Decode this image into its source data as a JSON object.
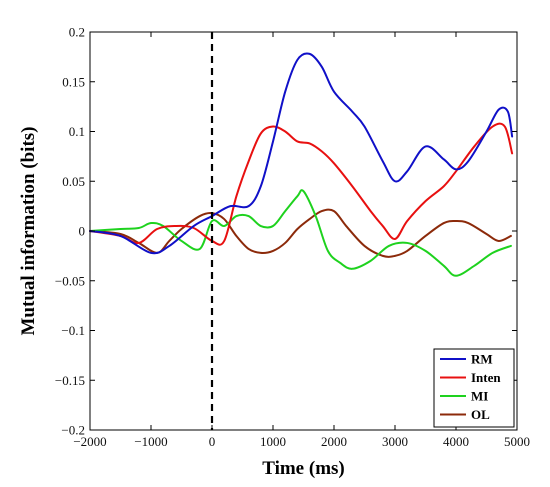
{
  "chart_data": {
    "type": "line",
    "xlabel": "Time (ms)",
    "ylabel": "Mutual information (bits)",
    "xlim": [
      -2000,
      5000
    ],
    "ylim": [
      -0.2,
      0.2
    ],
    "xticks": [
      -2000,
      -1000,
      0,
      1000,
      2000,
      3000,
      4000,
      5000
    ],
    "xtick_labels": [
      "−2000",
      "−1000",
      "0",
      "1000",
      "2000",
      "3000",
      "4000",
      "5000"
    ],
    "yticks": [
      -0.2,
      -0.15,
      -0.1,
      -0.05,
      0,
      0.05,
      0.1,
      0.15,
      0.2
    ],
    "ytick_labels": [
      "−0.2",
      "−0.15",
      "−0.1",
      "−0.05",
      "0",
      "0.05",
      "0.1",
      "0.15",
      "0.2"
    ],
    "grid": false,
    "legend_position": "bottom-right",
    "vline": {
      "x": 0,
      "style": "dashed",
      "color": "#000000"
    },
    "series": [
      {
        "name": "RM",
        "color": "#1010c8",
        "x": [
          -2000,
          -1500,
          -1000,
          -700,
          -300,
          0,
          300,
          600,
          800,
          1000,
          1200,
          1400,
          1600,
          1800,
          2000,
          2300,
          2500,
          2800,
          3000,
          3200,
          3500,
          3800,
          4000,
          4200,
          4500,
          4700,
          4850,
          4920
        ],
        "y": [
          0,
          -0.005,
          -0.022,
          -0.015,
          0.005,
          0.015,
          0.025,
          0.025,
          0.045,
          0.09,
          0.14,
          0.172,
          0.178,
          0.165,
          0.14,
          0.12,
          0.105,
          0.07,
          0.05,
          0.06,
          0.085,
          0.072,
          0.062,
          0.07,
          0.1,
          0.122,
          0.12,
          0.095
        ]
      },
      {
        "name": "Inten",
        "color": "#e81010",
        "x": [
          -2000,
          -1500,
          -1200,
          -900,
          -600,
          -300,
          0,
          200,
          400,
          600,
          800,
          1000,
          1200,
          1400,
          1600,
          1800,
          2000,
          2300,
          2600,
          2800,
          3000,
          3200,
          3500,
          3800,
          4000,
          4300,
          4600,
          4800,
          4920
        ],
        "y": [
          0,
          -0.005,
          -0.012,
          0.002,
          0.005,
          0.003,
          -0.01,
          -0.01,
          0.035,
          0.07,
          0.098,
          0.105,
          0.1,
          0.09,
          0.088,
          0.08,
          0.068,
          0.045,
          0.02,
          0.005,
          -0.008,
          0.01,
          0.03,
          0.045,
          0.06,
          0.085,
          0.105,
          0.105,
          0.078
        ]
      },
      {
        "name": "MI",
        "color": "#1ed21e",
        "x": [
          -2000,
          -1500,
          -1200,
          -1000,
          -800,
          -500,
          -200,
          0,
          200,
          400,
          600,
          800,
          1000,
          1200,
          1400,
          1500,
          1700,
          1900,
          2100,
          2300,
          2600,
          2900,
          3200,
          3500,
          3800,
          4000,
          4300,
          4600,
          4900
        ],
        "y": [
          0,
          0.002,
          0.003,
          0.008,
          0.005,
          -0.01,
          -0.018,
          0.01,
          0.005,
          0.015,
          0.015,
          0.005,
          0.005,
          0.02,
          0.035,
          0.04,
          0.015,
          -0.02,
          -0.032,
          -0.038,
          -0.03,
          -0.015,
          -0.012,
          -0.02,
          -0.035,
          -0.045,
          -0.035,
          -0.022,
          -0.015
        ]
      },
      {
        "name": "OL",
        "color": "#8c2a0a",
        "x": [
          -2000,
          -1500,
          -1200,
          -900,
          -700,
          -500,
          -200,
          0,
          200,
          400,
          600,
          800,
          1000,
          1200,
          1400,
          1600,
          1800,
          2000,
          2200,
          2500,
          2800,
          3000,
          3200,
          3500,
          3800,
          4000,
          4200,
          4500,
          4700,
          4900
        ],
        "y": [
          0,
          -0.003,
          -0.012,
          -0.022,
          -0.01,
          0.002,
          0.015,
          0.018,
          0.012,
          -0.005,
          -0.018,
          -0.022,
          -0.02,
          -0.012,
          0.002,
          0.012,
          0.02,
          0.02,
          0.005,
          -0.015,
          -0.025,
          -0.025,
          -0.02,
          -0.005,
          0.008,
          0.01,
          0.008,
          -0.003,
          -0.01,
          -0.005
        ]
      }
    ]
  }
}
